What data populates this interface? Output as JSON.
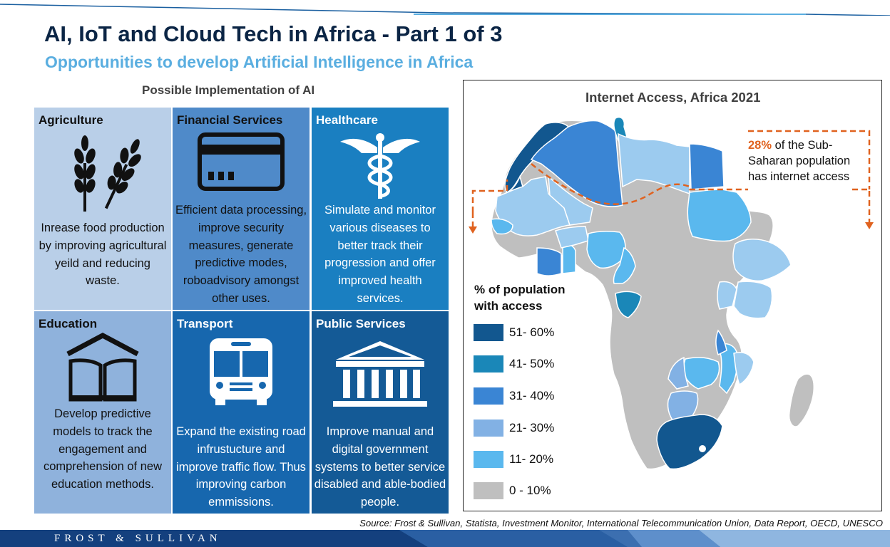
{
  "header": {
    "title": "AI, IoT and Cloud Tech in Africa - Part 1 of 3",
    "subtitle": "Opportunities to develop Artificial Intelligence in Africa"
  },
  "implementation": {
    "heading": "Possible Implementation  of AI",
    "tiles": [
      {
        "name": "Agriculture",
        "icon": "wheat-icon",
        "color": "#b9cfe8",
        "description": "Inrease food production by improving agricultural yeild and reducing waste."
      },
      {
        "name": "Financial Services",
        "icon": "credit-card-icon",
        "color": "#4f8ac9",
        "description": "Efficient data processing, improve security measures, generate predictive modes, roboadvisory amongst other uses."
      },
      {
        "name": "Healthcare",
        "icon": "caduceus-icon",
        "color": "#1a7fc1",
        "description": "Simulate and monitor various diseases to better track their progression and offer improved health services."
      },
      {
        "name": "Education",
        "icon": "book-house-icon",
        "color": "#8fb2dc",
        "description": "Develop predictive models to track the engagement and comprehension of new education methods."
      },
      {
        "name": "Transport",
        "icon": "bus-icon",
        "color": "#1767ae",
        "description": "Expand the existing road infrustucture and improve traffic flow. Thus improving carbon emmissions."
      },
      {
        "name": "Public Services",
        "icon": "government-building-icon",
        "color": "#145a96",
        "description": "Improve manual and digital government systems to better service disabled and able-bodied people."
      }
    ]
  },
  "map": {
    "title": "Internet  Access, Africa 2021",
    "callout": {
      "highlight": "28%",
      "line1_rest": " of the Sub-",
      "line2": "Saharan population",
      "line3": "has internet access"
    },
    "legend": {
      "title_line1": "% of population",
      "title_line2": "with access",
      "items": [
        {
          "label": "51- 60%",
          "color": "#12578f"
        },
        {
          "label": "41- 50%",
          "color": "#1a87b8"
        },
        {
          "label": "31- 40%",
          "color": "#3a85d4"
        },
        {
          "label": "21- 30%",
          "color": "#82b1e4"
        },
        {
          "label": "11- 20%",
          "color": "#5ab8ee"
        },
        {
          "label": "0 - 10%",
          "color": "#bfbfbf"
        }
      ]
    }
  },
  "source": "Source: Frost & Sullivan, Statista, Investment Monitor, International Telecommunication Union, Data Report, OECD, UNESCO",
  "footer": {
    "brand": "FROST & SULLIVAN"
  }
}
